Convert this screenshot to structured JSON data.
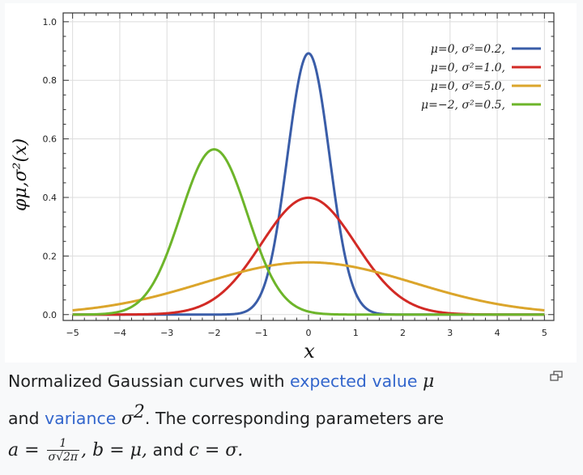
{
  "chart_data": {
    "type": "line",
    "xlabel": "x",
    "ylabel": "φμ,σ²(x)",
    "xlim": [
      -5.2,
      5.2
    ],
    "ylim": [
      -0.02,
      1.03
    ],
    "xticks": [
      -5,
      -4,
      -3,
      -2,
      -1,
      0,
      1,
      2,
      3,
      4,
      5
    ],
    "xtick_labels": [
      "−5",
      "−4",
      "−3",
      "−2",
      "−1",
      "0",
      "1",
      "2",
      "3",
      "4",
      "5"
    ],
    "yticks": [
      0.0,
      0.2,
      0.4,
      0.6,
      0.8,
      1.0
    ],
    "ytick_labels": [
      "0.0",
      "0.2",
      "0.4",
      "0.6",
      "0.8",
      "1.0"
    ],
    "legend_position": "top-right",
    "grid": true,
    "series": [
      {
        "name": "μ=0,   σ²=0.2,",
        "mu": 0,
        "variance": 0.2,
        "color": "#3a5da8"
      },
      {
        "name": "μ=0,   σ²=1.0,",
        "mu": 0,
        "variance": 1.0,
        "color": "#d22a25"
      },
      {
        "name": "μ=0,   σ²=5.0,",
        "mu": 0,
        "variance": 5.0,
        "color": "#dba52b"
      },
      {
        "name": "μ=−2, σ²=0.5,",
        "mu": -2,
        "variance": 0.5,
        "color": "#6db52a"
      }
    ]
  },
  "caption": {
    "part1": "Normalized Gaussian curves with ",
    "link_expected": "expected value",
    "mu_symbol": "μ",
    "part2": "and ",
    "link_variance": "variance",
    "sigma_symbol": "σ",
    "sigma_exp": "2",
    "part3": ". The corresponding parameters are",
    "a_eq": "a = ",
    "frac_num": "1",
    "frac_den": "σ√2π",
    "b_part": ", b = μ,",
    "and_text": " and ",
    "c_part": "c = σ."
  }
}
